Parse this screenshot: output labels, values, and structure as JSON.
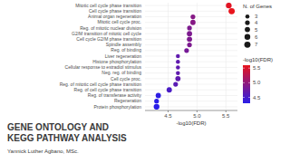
{
  "chart_data": {
    "type": "scatter",
    "orientation": "horizontal",
    "title": "GENE ONTOLOGY AND KEGG PATHWAY ANALYSIS",
    "subtitle": "Yannick Luther Agbano, MSc.",
    "xlabel": "-log10(FDR)",
    "categories": [
      "Mitotic cell cycle phase transition",
      "Cell cycle phase transition",
      "Animal organ regeneration",
      "Mitotic cell cycle proc.",
      "Reg. of mitotic nuclear division",
      "G2/M transition of mitotic cell cycle",
      "Cell cycle G2/M phase transition",
      "Spindle assembly",
      "Reg. of binding",
      "Liver regeneration",
      "Histone phosphorylation",
      "Cellular response to estradiol stimulus",
      "Neg. reg. of binding",
      "Cell cycle proc.",
      "Reg. of mitotic cell cycle phase transition",
      "Reg. of cell cycle phase transition",
      "Reg. of transferase activity",
      "Regeneration",
      "Protein phosphorylation"
    ],
    "values": [
      5.55,
      5.6,
      4.93,
      4.93,
      4.87,
      4.87,
      4.87,
      4.87,
      4.82,
      4.67,
      4.67,
      4.67,
      4.67,
      4.67,
      4.63,
      4.52,
      4.33,
      4.3,
      4.3
    ],
    "sizes": [
      6,
      7,
      4,
      5,
      4,
      5,
      5,
      4,
      4,
      3,
      3,
      3,
      3,
      5,
      4,
      5,
      5,
      4,
      6
    ],
    "xlim": [
      4.1,
      5.7
    ],
    "xticks": [
      4.5,
      {
        "value": 5,
        "label": "5.0"
      },
      5.5
    ],
    "grid": true,
    "size_legend": {
      "title": "N. of Genes",
      "values": [
        3,
        4,
        5,
        6,
        7
      ]
    },
    "colorbar": {
      "title": "-log10(FDR)",
      "range": [
        4.3,
        5.6
      ],
      "ticks": [
        4.5,
        {
          "value": 5,
          "label": "5.0"
        },
        5.5
      ],
      "colors": [
        "#2a1ee8",
        "#e8141c"
      ]
    }
  }
}
